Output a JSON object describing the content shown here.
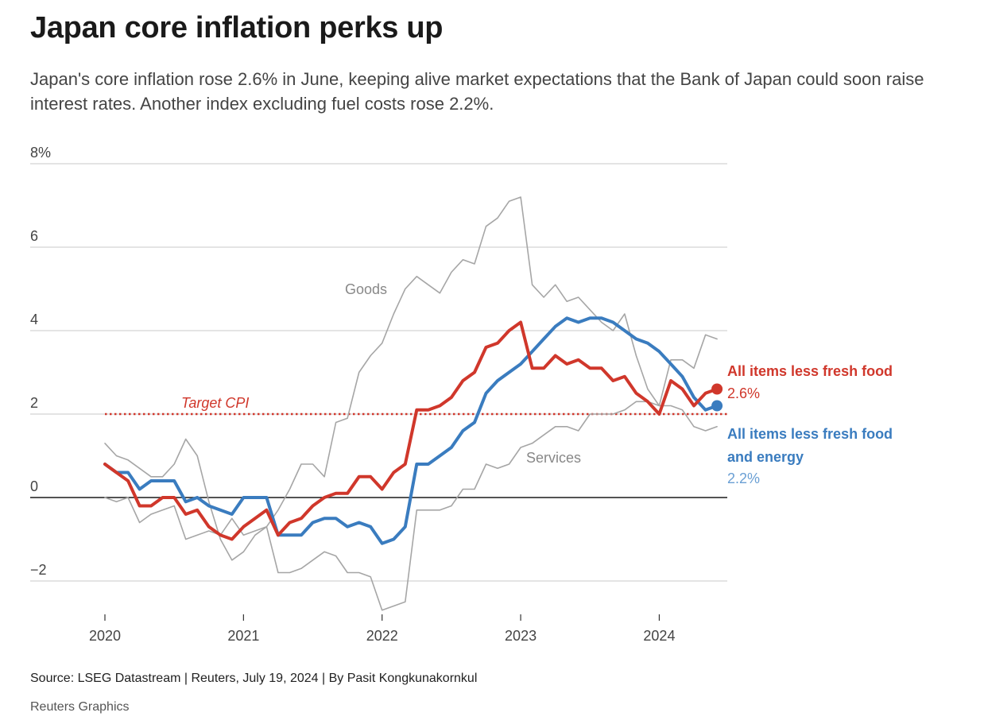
{
  "title": "Japan core inflation perks up",
  "subtitle": "Japan's core inflation rose 2.6% in June, keeping alive market expectations that the Bank of Japan could soon raise interest rates. Another index excluding fuel costs rose 2.2%.",
  "footer": {
    "source": "Source: LSEG Datastream | Reuters, July 19, 2024 | By Pasit Kongkunakornkul",
    "brand": "Reuters Graphics"
  },
  "colors": {
    "core": "#d0372b",
    "core_energy": "#3a7cbf",
    "grey_series": "#a6a6a6",
    "grid": "#c8c8c8",
    "zero_line": "#1a1a1a",
    "target": "#d0372b"
  },
  "chart_data": {
    "type": "line",
    "x_start": "2020-01",
    "frequency": "monthly",
    "x_ticks": [
      "2020",
      "2021",
      "2022",
      "2023",
      "2024"
    ],
    "y_ticks": [
      "8%",
      "6",
      "4",
      "2",
      "0",
      "−2"
    ],
    "ylim": [
      -2.8,
      8
    ],
    "grid": true,
    "target": {
      "label": "Target CPI",
      "value": 2
    },
    "series": [
      {
        "name": "Goods",
        "style": "grey",
        "values": [
          1.3,
          1.0,
          0.9,
          0.7,
          0.5,
          0.5,
          0.8,
          1.4,
          1.0,
          -0.1,
          -1.0,
          -1.5,
          -1.3,
          -0.9,
          -0.7,
          -0.3,
          0.2,
          0.8,
          0.8,
          0.5,
          1.8,
          1.9,
          3.0,
          3.4,
          3.7,
          4.4,
          5.0,
          5.3,
          5.1,
          4.9,
          5.4,
          5.7,
          5.6,
          6.5,
          6.7,
          7.1,
          7.2,
          5.1,
          4.8,
          5.1,
          4.7,
          4.8,
          4.5,
          4.2,
          4.0,
          4.4,
          3.4,
          2.6,
          2.2,
          3.3,
          3.3,
          3.1,
          3.9,
          3.8
        ]
      },
      {
        "name": "Services",
        "style": "grey",
        "values": [
          0.0,
          -0.1,
          0.0,
          -0.6,
          -0.4,
          -0.3,
          -0.2,
          -1.0,
          -0.9,
          -0.8,
          -0.9,
          -0.5,
          -0.9,
          -0.8,
          -0.7,
          -1.8,
          -1.8,
          -1.7,
          -1.5,
          -1.3,
          -1.4,
          -1.8,
          -1.8,
          -1.9,
          -2.7,
          -2.6,
          -2.5,
          -0.3,
          -0.3,
          -0.3,
          -0.2,
          0.2,
          0.2,
          0.8,
          0.7,
          0.8,
          1.2,
          1.3,
          1.5,
          1.7,
          1.7,
          1.6,
          2.0,
          2.0,
          2.0,
          2.1,
          2.3,
          2.3,
          2.2,
          2.2,
          2.1,
          1.7,
          1.6,
          1.7
        ]
      },
      {
        "name": "All items less fresh food",
        "style": "red",
        "last_label": "2.6%",
        "values": [
          0.8,
          0.6,
          0.4,
          -0.2,
          -0.2,
          0.0,
          0.0,
          -0.4,
          -0.3,
          -0.7,
          -0.9,
          -1.0,
          -0.7,
          -0.5,
          -0.3,
          -0.9,
          -0.6,
          -0.5,
          -0.2,
          0.0,
          0.1,
          0.1,
          0.5,
          0.5,
          0.2,
          0.6,
          0.8,
          2.1,
          2.1,
          2.2,
          2.4,
          2.8,
          3.0,
          3.6,
          3.7,
          4.0,
          4.2,
          3.1,
          3.1,
          3.4,
          3.2,
          3.3,
          3.1,
          3.1,
          2.8,
          2.9,
          2.5,
          2.3,
          2.0,
          2.8,
          2.6,
          2.2,
          2.5,
          2.6
        ]
      },
      {
        "name": "All items less fresh food and energy",
        "style": "blue",
        "last_label": "2.2%",
        "values": [
          0.8,
          0.6,
          0.6,
          0.2,
          0.4,
          0.4,
          0.4,
          -0.1,
          0.0,
          -0.2,
          -0.3,
          -0.4,
          0.0,
          0.0,
          0.0,
          -0.9,
          -0.9,
          -0.9,
          -0.6,
          -0.5,
          -0.5,
          -0.7,
          -0.6,
          -0.7,
          -1.1,
          -1.0,
          -0.7,
          0.8,
          0.8,
          1.0,
          1.2,
          1.6,
          1.8,
          2.5,
          2.8,
          3.0,
          3.2,
          3.5,
          3.8,
          4.1,
          4.3,
          4.2,
          4.3,
          4.3,
          4.2,
          4.0,
          3.8,
          3.7,
          3.5,
          3.2,
          2.9,
          2.4,
          2.1,
          2.2
        ]
      }
    ],
    "labels": {
      "goods": "Goods",
      "services": "Services",
      "core_line1": "All items less fresh food",
      "core_value": "2.6%",
      "core_energy_line1": "All items less fresh food",
      "core_energy_line2": "and energy",
      "core_energy_value": "2.2%"
    }
  }
}
